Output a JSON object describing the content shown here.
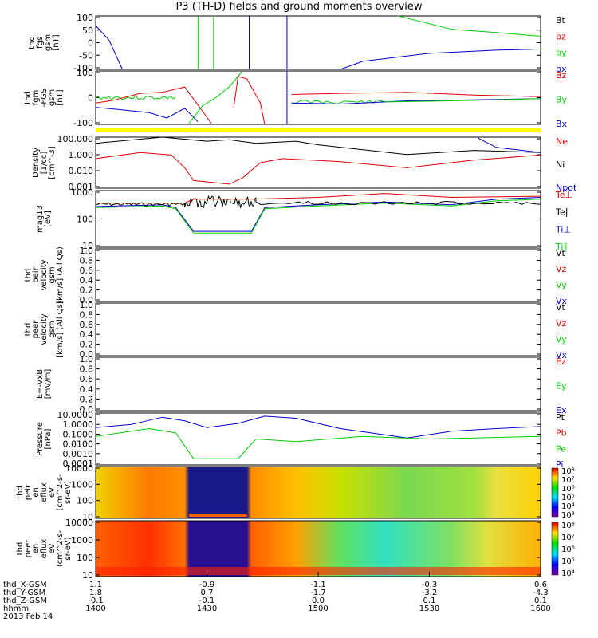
{
  "title": "P3 (TH-D) fields and ground moments overview",
  "colors": {
    "black": "#000000",
    "red": "#dd0000",
    "green": "#00cc00",
    "blue": "#0000cc",
    "yellow": "#ffff00"
  },
  "chart_data": [
    {
      "type": "line",
      "ylabel": [
        "thd",
        "fgs",
        "gsm",
        "[nT]"
      ],
      "yticks": [
        "100",
        "50",
        "0",
        "-50",
        "-100"
      ],
      "legend": [
        {
          "name": "Bt",
          "color": "black"
        },
        {
          "name": "bz",
          "color": "red"
        },
        {
          "name": "by",
          "color": "green"
        },
        {
          "name": "bx",
          "color": "blue"
        }
      ]
    },
    {
      "type": "line",
      "ylabel": [
        "thd",
        "fgm",
        "-FGS",
        "gsm",
        "[nT]"
      ],
      "yticks": [
        "100",
        "0",
        "-100"
      ],
      "legend": [
        {
          "name": "Bz",
          "color": "red"
        },
        {
          "name": "By",
          "color": "green"
        },
        {
          "name": "Bx",
          "color": "blue"
        }
      ]
    },
    {
      "type": "line",
      "ylabel": [
        "Density",
        "[1/cc]",
        "[cm^-3]"
      ],
      "yticks": [
        "100.000",
        "1.000",
        "0.010",
        "0.001"
      ],
      "legend": [
        {
          "name": "Ne",
          "color": "red"
        },
        {
          "name": "Ni",
          "color": "black"
        },
        {
          "name": "Npot",
          "color": "blue"
        }
      ]
    },
    {
      "type": "line",
      "ylabel": [
        "mag13",
        "[eV]"
      ],
      "yticks": [
        "1000",
        "100",
        "10"
      ],
      "legend": [
        {
          "name": "Te⊥",
          "color": "red"
        },
        {
          "name": "Te∥",
          "color": "black"
        },
        {
          "name": "Ti⊥",
          "color": "blue"
        },
        {
          "name": "Ti∥",
          "color": "green"
        }
      ]
    },
    {
      "type": "line",
      "ylabel": [
        "thd",
        "peir",
        "velocity",
        "gsm",
        "[km/s] (All Qs)"
      ],
      "yticks": [
        "1.0",
        "0.8",
        "0.6",
        "0.4",
        "0.2",
        "0.0"
      ],
      "legend": [
        {
          "name": "Vt",
          "color": "black"
        },
        {
          "name": "Vz",
          "color": "red"
        },
        {
          "name": "Vy",
          "color": "green"
        },
        {
          "name": "Vx",
          "color": "blue"
        }
      ]
    },
    {
      "type": "line",
      "ylabel": [
        "thd",
        "peer",
        "velocity",
        "gsm",
        "[km/s] (All Qs)"
      ],
      "yticks": [
        "1.0",
        "0.8",
        "0.6",
        "0.4",
        "0.2",
        "0.0"
      ],
      "legend": [
        {
          "name": "Vt",
          "color": "black"
        },
        {
          "name": "Vz",
          "color": "red"
        },
        {
          "name": "Vy",
          "color": "green"
        },
        {
          "name": "Vx",
          "color": "blue"
        }
      ]
    },
    {
      "type": "line",
      "ylabel": [
        "E=-VxB",
        "[mV/m]"
      ],
      "yticks": [
        "1.0",
        "0.8",
        "0.6",
        "0.4",
        "0.2",
        "0.0"
      ],
      "legend": [
        {
          "name": "Ez",
          "color": "red"
        },
        {
          "name": "Ey",
          "color": "green"
        },
        {
          "name": "Ex",
          "color": "blue"
        }
      ]
    },
    {
      "type": "line",
      "ylabel": [
        "Pressure",
        "[nPa]"
      ],
      "yticks": [
        "10.0000",
        "1.0000",
        "0.1000",
        "0.0100",
        "0.0010",
        "0.0001"
      ],
      "legend": [
        {
          "name": "Pt",
          "color": "black"
        },
        {
          "name": "Pb",
          "color": "red"
        },
        {
          "name": "Pe",
          "color": "green"
        },
        {
          "name": "Pi",
          "color": "blue"
        }
      ]
    },
    {
      "type": "heatmap",
      "ylabel": [
        "thd",
        "peir",
        "en",
        "eflux",
        "eV",
        "(cm^2-s-",
        "sr-eV)"
      ],
      "yticks": [
        "10000",
        "1000",
        "100",
        "10"
      ],
      "colorbar": [
        "10⁸",
        "10⁷",
        "10⁶",
        "10⁵",
        "10⁴",
        "10³"
      ]
    },
    {
      "type": "heatmap",
      "ylabel": [
        "thd",
        "peer",
        "en",
        "eflux",
        "eV",
        "(cm^2-s-",
        "sr-eV)"
      ],
      "yticks": [
        "10000",
        "1000",
        "100",
        "10"
      ],
      "colorbar": [
        "10⁸",
        "10⁷",
        "10⁶",
        "10⁵",
        "10⁴"
      ]
    }
  ],
  "xaxis": {
    "rows": [
      {
        "name": "thd_X-GSM",
        "values": [
          "1.1",
          "-0.9",
          "-1.1",
          "-0.3",
          "0.6"
        ]
      },
      {
        "name": "thd_Y-GSM",
        "values": [
          "1.8",
          "0.7",
          "-1.7",
          "-3.2",
          "-4.3"
        ]
      },
      {
        "name": "thd_Z-GSM",
        "values": [
          "-0.1",
          "-0.1",
          "0.0",
          "0.1",
          "0.1"
        ]
      },
      {
        "name": "hhmm",
        "values": [
          "1400",
          "1430",
          "1500",
          "1530",
          "1600"
        ]
      }
    ],
    "date": "2013 Feb 14"
  }
}
